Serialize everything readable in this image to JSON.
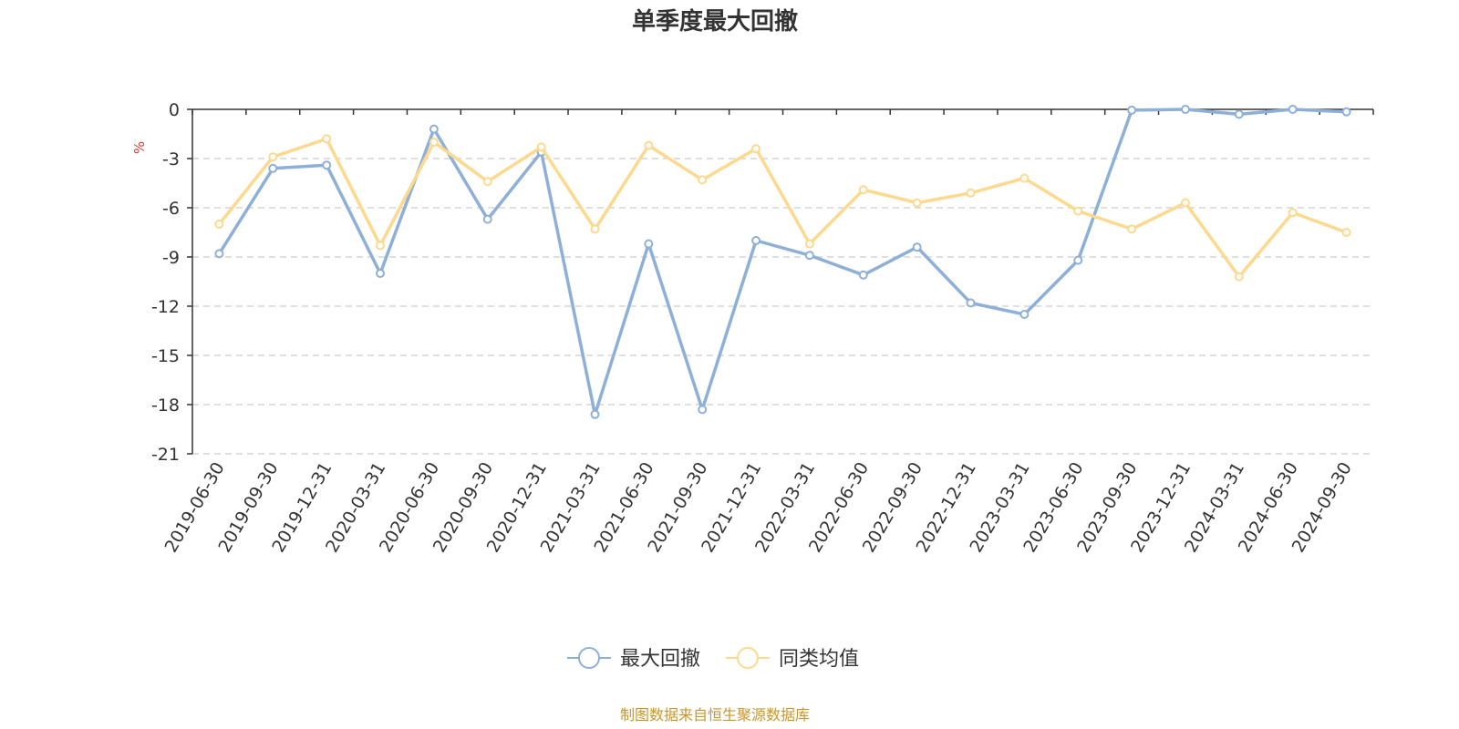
{
  "chart_data": {
    "type": "line",
    "title": "单季度最大回撤",
    "ylabel": "%",
    "ylim": [
      -21,
      0
    ],
    "yticks": [
      0,
      -3,
      -6,
      -9,
      -12,
      -15,
      -18,
      -21
    ],
    "grid": true,
    "legend_position": "bottom-center",
    "categories": [
      "2019-06-30",
      "2019-09-30",
      "2019-12-31",
      "2020-03-31",
      "2020-06-30",
      "2020-09-30",
      "2020-12-31",
      "2021-03-31",
      "2021-06-30",
      "2021-09-30",
      "2021-12-31",
      "2022-03-31",
      "2022-06-30",
      "2022-09-30",
      "2022-12-31",
      "2023-03-31",
      "2023-06-30",
      "2023-09-30",
      "2023-12-31",
      "2024-03-31",
      "2024-06-30",
      "2024-09-30"
    ],
    "series": [
      {
        "name": "最大回撤",
        "color": "#8eb0d8",
        "values": [
          -8.8,
          -3.6,
          -3.4,
          -10.0,
          -1.2,
          -6.7,
          -2.6,
          -18.6,
          -8.2,
          -18.3,
          -8.0,
          -8.9,
          -10.1,
          -8.4,
          -11.8,
          -12.5,
          -9.2,
          -0.05,
          0.0,
          -0.3,
          0.0,
          -0.15
        ]
      },
      {
        "name": "同类均值",
        "color": "#fcd98e",
        "values": [
          -7.0,
          -2.9,
          -1.8,
          -8.3,
          -2.0,
          -4.4,
          -2.3,
          -7.3,
          -2.2,
          -4.3,
          -2.4,
          -8.2,
          -4.9,
          -5.7,
          -5.1,
          -4.2,
          -6.2,
          -7.3,
          -5.7,
          -10.2,
          -6.3,
          -7.5
        ]
      }
    ],
    "source_note": "制图数据来自恒生聚源数据库"
  }
}
